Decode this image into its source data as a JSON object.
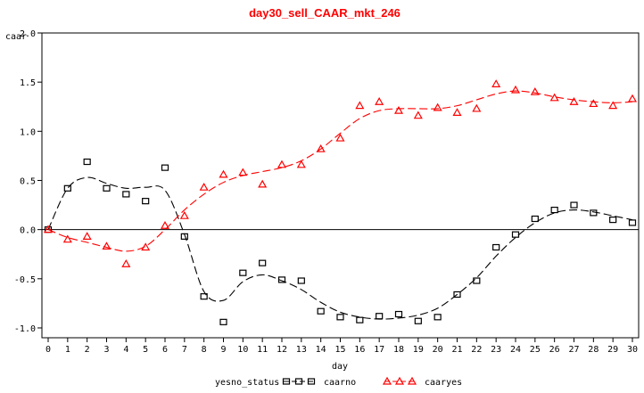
{
  "chart_data": {
    "type": "scatter",
    "title": "day30_sell_CAAR_mkt_246",
    "title_color": "#ff0000",
    "xlabel": "day",
    "ylabel": "caar",
    "xlim": [
      0,
      30
    ],
    "ylim": [
      -1.1,
      2.0
    ],
    "x_ticks": [
      0,
      1,
      2,
      3,
      4,
      5,
      6,
      7,
      8,
      9,
      10,
      11,
      12,
      13,
      14,
      15,
      16,
      17,
      18,
      19,
      20,
      21,
      22,
      23,
      24,
      25,
      26,
      27,
      28,
      29,
      30
    ],
    "y_ticks": [
      -1.0,
      -0.5,
      0.0,
      0.5,
      1.0,
      1.5,
      2.0
    ],
    "y_tick_labels": [
      "-1.0",
      "-0.5",
      "0.0",
      "0.5",
      "1.0",
      "1.5",
      "2.0"
    ],
    "reference_line_y": 0,
    "grid": false,
    "legend_title": "yesno_status",
    "legend_position": "bottom",
    "series": [
      {
        "name": "caarno",
        "marker": "square",
        "color": "#000000",
        "line_style": "dashed",
        "x": [
          0,
          1,
          2,
          3,
          4,
          5,
          6,
          7,
          8,
          9,
          10,
          11,
          12,
          13,
          14,
          15,
          16,
          17,
          18,
          19,
          20,
          21,
          22,
          23,
          24,
          25,
          26,
          27,
          28,
          29,
          30
        ],
        "y": [
          0.0,
          0.42,
          0.69,
          0.42,
          0.36,
          0.29,
          0.63,
          -0.07,
          -0.68,
          -0.94,
          -0.44,
          -0.34,
          -0.51,
          -0.52,
          -0.83,
          -0.89,
          -0.92,
          -0.88,
          -0.86,
          -0.93,
          -0.89,
          -0.66,
          -0.52,
          -0.18,
          -0.05,
          0.11,
          0.2,
          0.25,
          0.17,
          0.1,
          0.07
        ],
        "smooth_y": [
          0.0,
          0.42,
          0.53,
          0.47,
          0.42,
          0.43,
          0.4,
          -0.05,
          -0.63,
          -0.72,
          -0.53,
          -0.46,
          -0.52,
          -0.61,
          -0.74,
          -0.84,
          -0.89,
          -0.91,
          -0.9,
          -0.87,
          -0.8,
          -0.66,
          -0.49,
          -0.27,
          -0.08,
          0.07,
          0.17,
          0.2,
          0.18,
          0.14,
          0.1
        ]
      },
      {
        "name": "caaryes",
        "marker": "triangle",
        "color": "#ff0000",
        "line_style": "dashed",
        "x": [
          0,
          1,
          2,
          3,
          4,
          5,
          6,
          7,
          8,
          9,
          10,
          11,
          12,
          13,
          14,
          15,
          16,
          17,
          18,
          19,
          20,
          21,
          22,
          23,
          24,
          25,
          26,
          27,
          28,
          29,
          30
        ],
        "y": [
          0.0,
          -0.1,
          -0.07,
          -0.17,
          -0.35,
          -0.18,
          0.04,
          0.14,
          0.43,
          0.56,
          0.58,
          0.46,
          0.66,
          0.66,
          0.82,
          0.93,
          1.26,
          1.3,
          1.21,
          1.16,
          1.24,
          1.19,
          1.23,
          1.48,
          1.42,
          1.4,
          1.34,
          1.3,
          1.28,
          1.26,
          1.33
        ],
        "smooth_y": [
          0.0,
          -0.08,
          -0.13,
          -0.18,
          -0.22,
          -0.17,
          0.0,
          0.2,
          0.36,
          0.48,
          0.55,
          0.59,
          0.63,
          0.7,
          0.82,
          0.98,
          1.13,
          1.21,
          1.23,
          1.23,
          1.23,
          1.26,
          1.32,
          1.38,
          1.41,
          1.39,
          1.35,
          1.32,
          1.3,
          1.29,
          1.3
        ]
      }
    ]
  }
}
